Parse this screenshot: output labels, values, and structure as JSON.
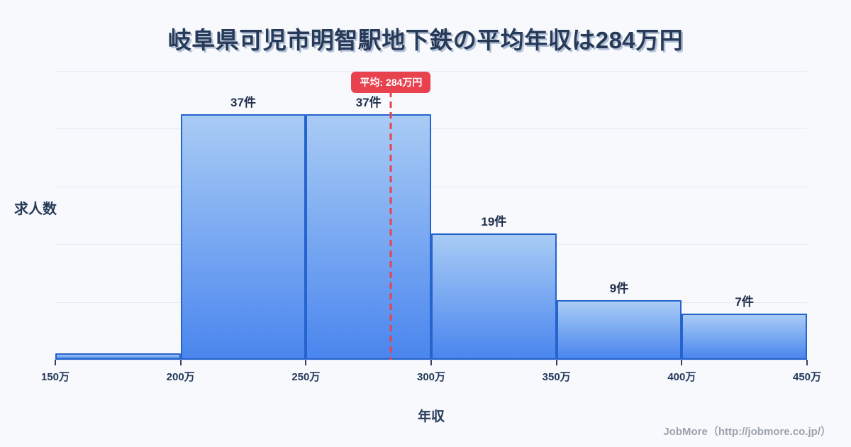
{
  "footer": {
    "credit": "JobMore（http://jobmore.co.jp/）"
  },
  "colors": {
    "background": "#f7f9fd",
    "title": "#273a58",
    "bar_fill_top": "#a9ccf5",
    "bar_fill_bottom": "#4a86ee",
    "bar_border": "#2563cd",
    "average_line": "#e8424f",
    "grid": "#e5eaf3",
    "tick": "#24395b",
    "footer": "#9ca3ab"
  },
  "chart_data": {
    "type": "bar",
    "subtype": "histogram",
    "title": "岐阜県可児市明智駅地下鉄の平均年収は284万円",
    "xlabel": "年収",
    "ylabel": "求人数",
    "bin_edges": [
      150,
      200,
      250,
      300,
      350,
      400,
      450
    ],
    "bin_unit": "万",
    "x_tick_labels": [
      "150万",
      "200万",
      "250万",
      "300万",
      "350万",
      "400万",
      "450万"
    ],
    "values": [
      1,
      37,
      37,
      19,
      9,
      7
    ],
    "bar_labels": [
      "",
      "37件",
      "37件",
      "19件",
      "9件",
      "7件"
    ],
    "value_unit": "件",
    "average": 284,
    "average_label": "平均: 284万円",
    "xlim": [
      150,
      450
    ],
    "ylim": [
      0,
      43.5
    ],
    "grid": "horizontal",
    "gridline_count": 6,
    "legend": "none"
  }
}
